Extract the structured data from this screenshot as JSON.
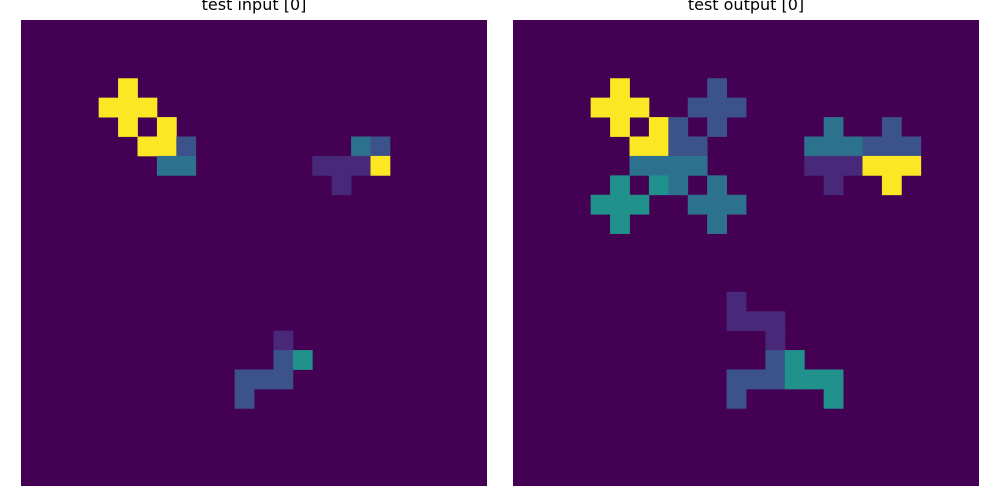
{
  "palette": {
    "0": "#440154",
    "1": "#482878",
    "2": "#3b528b",
    "3": "#21918c",
    "4": "#2c728e",
    "5": "#fde725"
  },
  "panels": [
    {
      "title": "test input [0]",
      "rows": 24,
      "cols": 24,
      "cells": [
        [
          3,
          5,
          5
        ],
        [
          4,
          4,
          5
        ],
        [
          4,
          5,
          5
        ],
        [
          4,
          6,
          5
        ],
        [
          5,
          5,
          5
        ],
        [
          5,
          7,
          5
        ],
        [
          6,
          6,
          5
        ],
        [
          6,
          7,
          5
        ],
        [
          6,
          8,
          2
        ],
        [
          7,
          7,
          4
        ],
        [
          7,
          8,
          4
        ],
        [
          6,
          17,
          4
        ],
        [
          6,
          18,
          2
        ],
        [
          7,
          15,
          1
        ],
        [
          7,
          16,
          1
        ],
        [
          7,
          17,
          1
        ],
        [
          7,
          18,
          5
        ],
        [
          8,
          16,
          1
        ],
        [
          16,
          13,
          1
        ],
        [
          17,
          13,
          2
        ],
        [
          17,
          14,
          3
        ],
        [
          18,
          11,
          2
        ],
        [
          18,
          12,
          2
        ],
        [
          18,
          13,
          2
        ],
        [
          19,
          11,
          2
        ]
      ]
    },
    {
      "title": "test output [0]",
      "rows": 24,
      "cols": 24,
      "cells": [
        [
          3,
          5,
          5
        ],
        [
          3,
          10,
          2
        ],
        [
          4,
          4,
          5
        ],
        [
          4,
          5,
          5
        ],
        [
          4,
          6,
          5
        ],
        [
          4,
          9,
          2
        ],
        [
          4,
          10,
          2
        ],
        [
          4,
          11,
          2
        ],
        [
          5,
          5,
          5
        ],
        [
          5,
          7,
          5
        ],
        [
          5,
          8,
          2
        ],
        [
          5,
          10,
          2
        ],
        [
          5,
          16,
          4
        ],
        [
          5,
          19,
          2
        ],
        [
          6,
          6,
          5
        ],
        [
          6,
          7,
          5
        ],
        [
          6,
          8,
          2
        ],
        [
          6,
          9,
          2
        ],
        [
          6,
          15,
          4
        ],
        [
          6,
          16,
          4
        ],
        [
          6,
          17,
          4
        ],
        [
          6,
          18,
          2
        ],
        [
          6,
          19,
          2
        ],
        [
          6,
          20,
          2
        ],
        [
          7,
          6,
          4
        ],
        [
          7,
          7,
          4
        ],
        [
          7,
          8,
          4
        ],
        [
          7,
          9,
          4
        ],
        [
          7,
          15,
          1
        ],
        [
          7,
          16,
          1
        ],
        [
          7,
          17,
          1
        ],
        [
          7,
          18,
          5
        ],
        [
          7,
          19,
          5
        ],
        [
          7,
          20,
          5
        ],
        [
          8,
          5,
          3
        ],
        [
          8,
          7,
          3
        ],
        [
          8,
          8,
          4
        ],
        [
          8,
          10,
          4
        ],
        [
          8,
          16,
          1
        ],
        [
          8,
          19,
          5
        ],
        [
          9,
          4,
          3
        ],
        [
          9,
          5,
          3
        ],
        [
          9,
          6,
          3
        ],
        [
          9,
          9,
          4
        ],
        [
          9,
          10,
          4
        ],
        [
          9,
          11,
          4
        ],
        [
          10,
          5,
          3
        ],
        [
          10,
          10,
          4
        ],
        [
          14,
          11,
          1
        ],
        [
          15,
          11,
          1
        ],
        [
          15,
          12,
          1
        ],
        [
          15,
          13,
          1
        ],
        [
          16,
          13,
          1
        ],
        [
          17,
          13,
          2
        ],
        [
          17,
          14,
          3
        ],
        [
          18,
          11,
          2
        ],
        [
          18,
          12,
          2
        ],
        [
          18,
          13,
          2
        ],
        [
          18,
          14,
          3
        ],
        [
          18,
          15,
          3
        ],
        [
          18,
          16,
          3
        ],
        [
          19,
          11,
          2
        ],
        [
          19,
          16,
          3
        ]
      ]
    }
  ]
}
